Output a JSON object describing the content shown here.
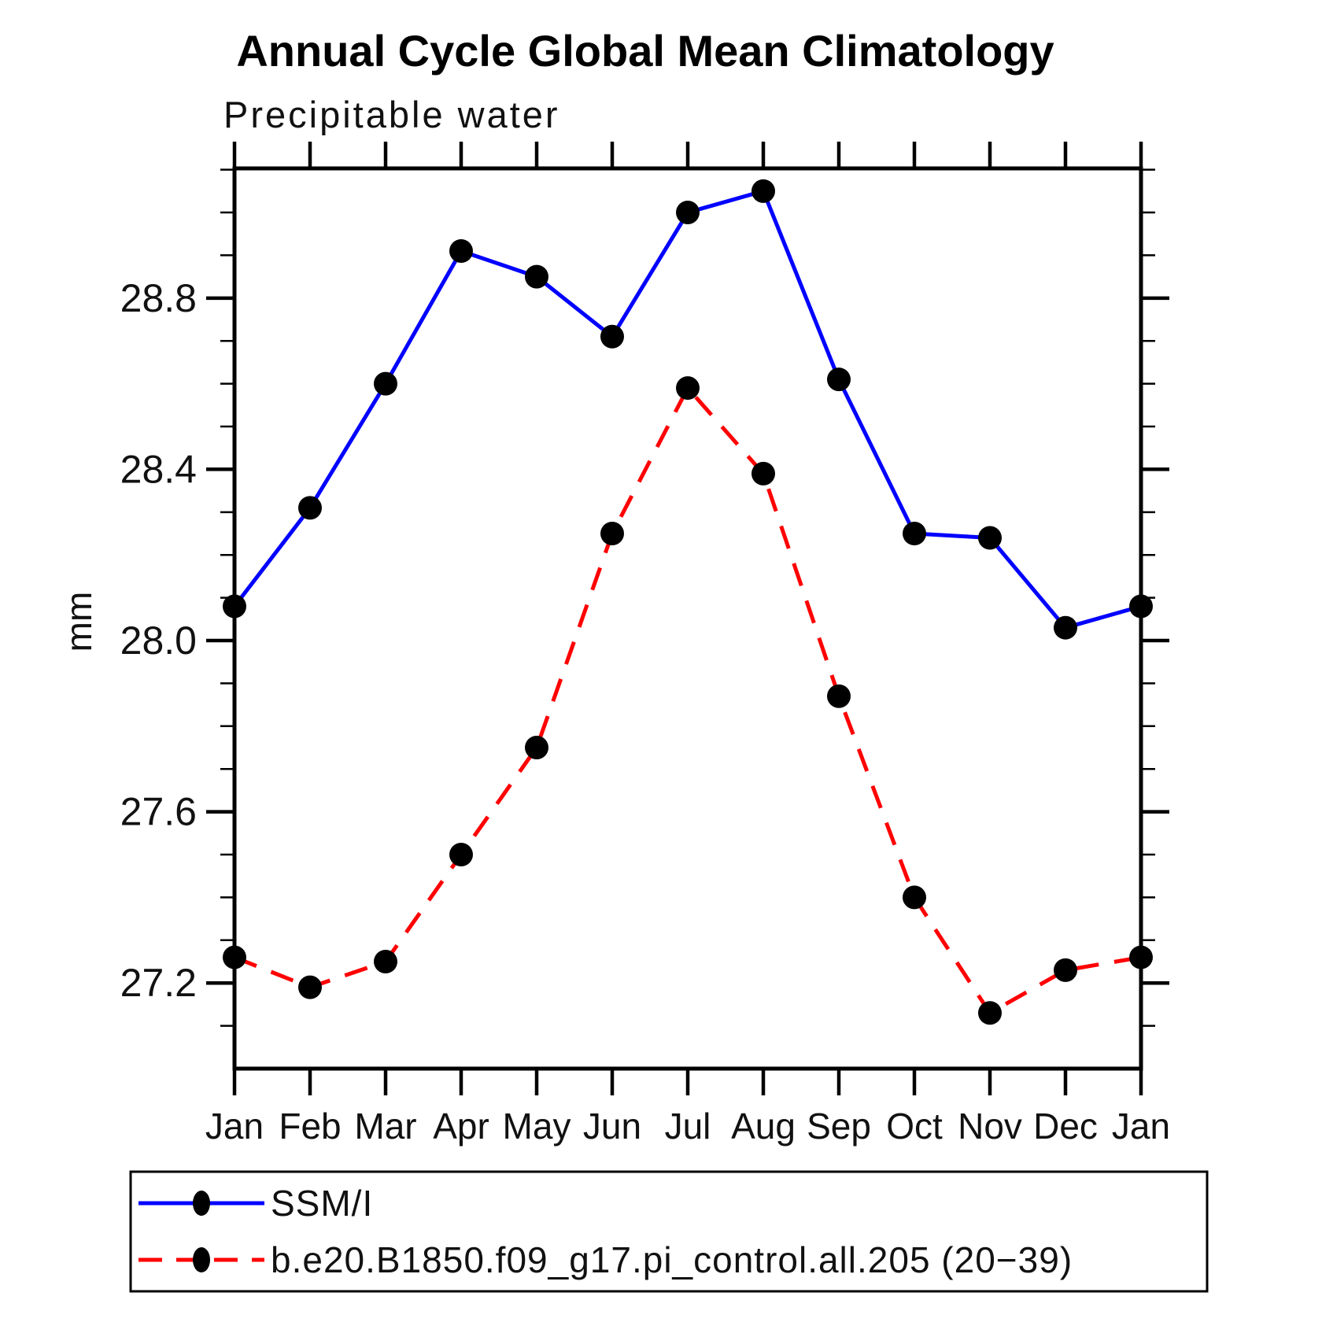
{
  "page": {
    "title": "Annual Cycle Global Mean Climatology",
    "subtitle": "Precipitable water"
  },
  "chart_data": {
    "type": "line",
    "title": "Annual Cycle Global Mean Climatology",
    "subtitle": "Precipitable water",
    "xlabel": "",
    "ylabel": "mm",
    "x_categories": [
      "Jan",
      "Feb",
      "Mar",
      "Apr",
      "May",
      "Jun",
      "Jul",
      "Aug",
      "Sep",
      "Oct",
      "Nov",
      "Dec",
      "Jan"
    ],
    "ylim": [
      27.0,
      29.103
    ],
    "y_major_ticks": [
      27.2,
      27.6,
      28.0,
      28.4,
      28.8
    ],
    "y_major_tick_labels": [
      "27.2",
      "27.6",
      "28.0",
      "28.4",
      "28.8"
    ],
    "y_minor_tick_step": 0.1,
    "grid": false,
    "tick_direction": "out",
    "legend_position": "bottom-left-box",
    "series": [
      {
        "name": "SSM/I",
        "line_style": "solid",
        "line_color": "#0000ff",
        "marker": "filled-circle",
        "marker_color": "#000000",
        "values": [
          28.08,
          28.31,
          28.6,
          28.91,
          28.85,
          28.71,
          29.0,
          29.05,
          28.61,
          28.25,
          28.24,
          28.03,
          28.08
        ]
      },
      {
        "name": "b.e20.B1850.f09_g17.pi_control.all.205 (20−39)",
        "line_style": "dashed",
        "line_color": "#ff0000",
        "marker": "filled-circle",
        "marker_color": "#000000",
        "values": [
          27.26,
          27.19,
          27.25,
          27.5,
          27.75,
          28.25,
          28.59,
          28.39,
          27.87,
          27.4,
          27.13,
          27.23,
          27.26
        ]
      }
    ]
  },
  "colors": {
    "background": "#ffffff",
    "axis": "#000000",
    "text": "#111111",
    "series_blue": "#0000ff",
    "series_red": "#ff0000",
    "marker": "#000000"
  }
}
